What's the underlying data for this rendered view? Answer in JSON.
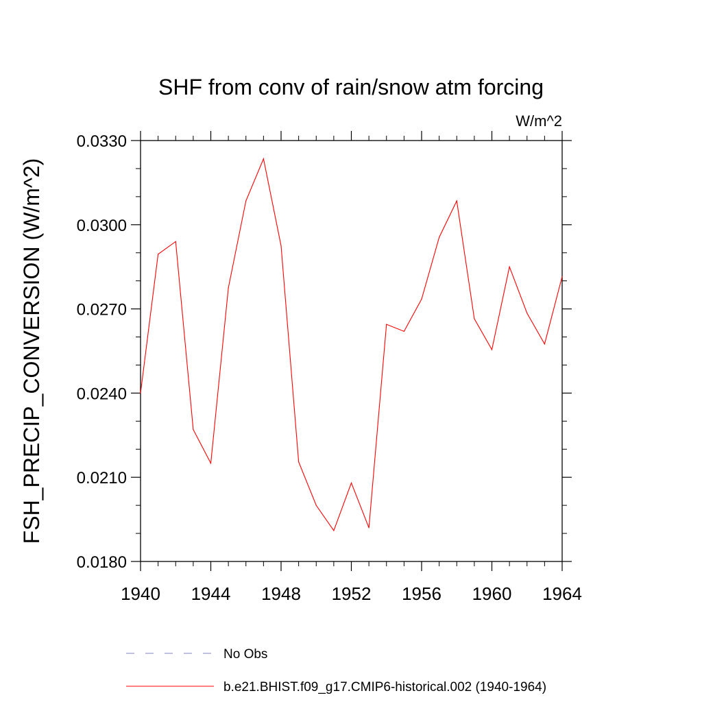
{
  "chart_data": {
    "type": "line",
    "title": "SHF from conv of rain/snow atm forcing",
    "units_label": "W/m^2",
    "xlabel": "",
    "ylabel": "FSH_PRECIP_CONVERSION  (W/m^2)",
    "xlim": [
      1940,
      1964
    ],
    "ylim": [
      0.018,
      0.033
    ],
    "x_ticks": [
      1940,
      1944,
      1948,
      1952,
      1956,
      1960,
      1964
    ],
    "x_tick_labels": [
      "1940",
      "1944",
      "1948",
      "1952",
      "1956",
      "1960",
      "1964"
    ],
    "y_ticks": [
      0.018,
      0.021,
      0.024,
      0.027,
      0.03,
      0.033
    ],
    "y_tick_labels": [
      "0.0180",
      "0.0210",
      "0.0240",
      "0.0270",
      "0.0300",
      "0.0330"
    ],
    "grid": false,
    "legend_position": "bottom",
    "series": [
      {
        "name": "b.e21.BHIST.f09_g17.CMIP6-historical.002 (1940-1964)",
        "color": "#ff0000",
        "style": "solid",
        "x": [
          1940,
          1941,
          1942,
          1943,
          1944,
          1945,
          1946,
          1947,
          1948,
          1949,
          1950,
          1951,
          1952,
          1953,
          1954,
          1955,
          1956,
          1957,
          1958,
          1959,
          1960,
          1961,
          1962,
          1963,
          1964
        ],
        "values": [
          0.024,
          0.02895,
          0.0294,
          0.0227,
          0.0215,
          0.02775,
          0.03085,
          0.03235,
          0.02925,
          0.02155,
          0.02,
          0.0191,
          0.0208,
          0.0192,
          0.02645,
          0.0262,
          0.02735,
          0.02955,
          0.03085,
          0.02665,
          0.02555,
          0.0285,
          0.02685,
          0.02575,
          0.02815
        ]
      }
    ],
    "legend": [
      {
        "label": "No Obs",
        "color": "#8080c0",
        "style": "dashed"
      },
      {
        "label": "b.e21.BHIST.f09_g17.CMIP6-historical.002 (1940-1964)",
        "color": "#ff0000",
        "style": "solid"
      }
    ]
  }
}
